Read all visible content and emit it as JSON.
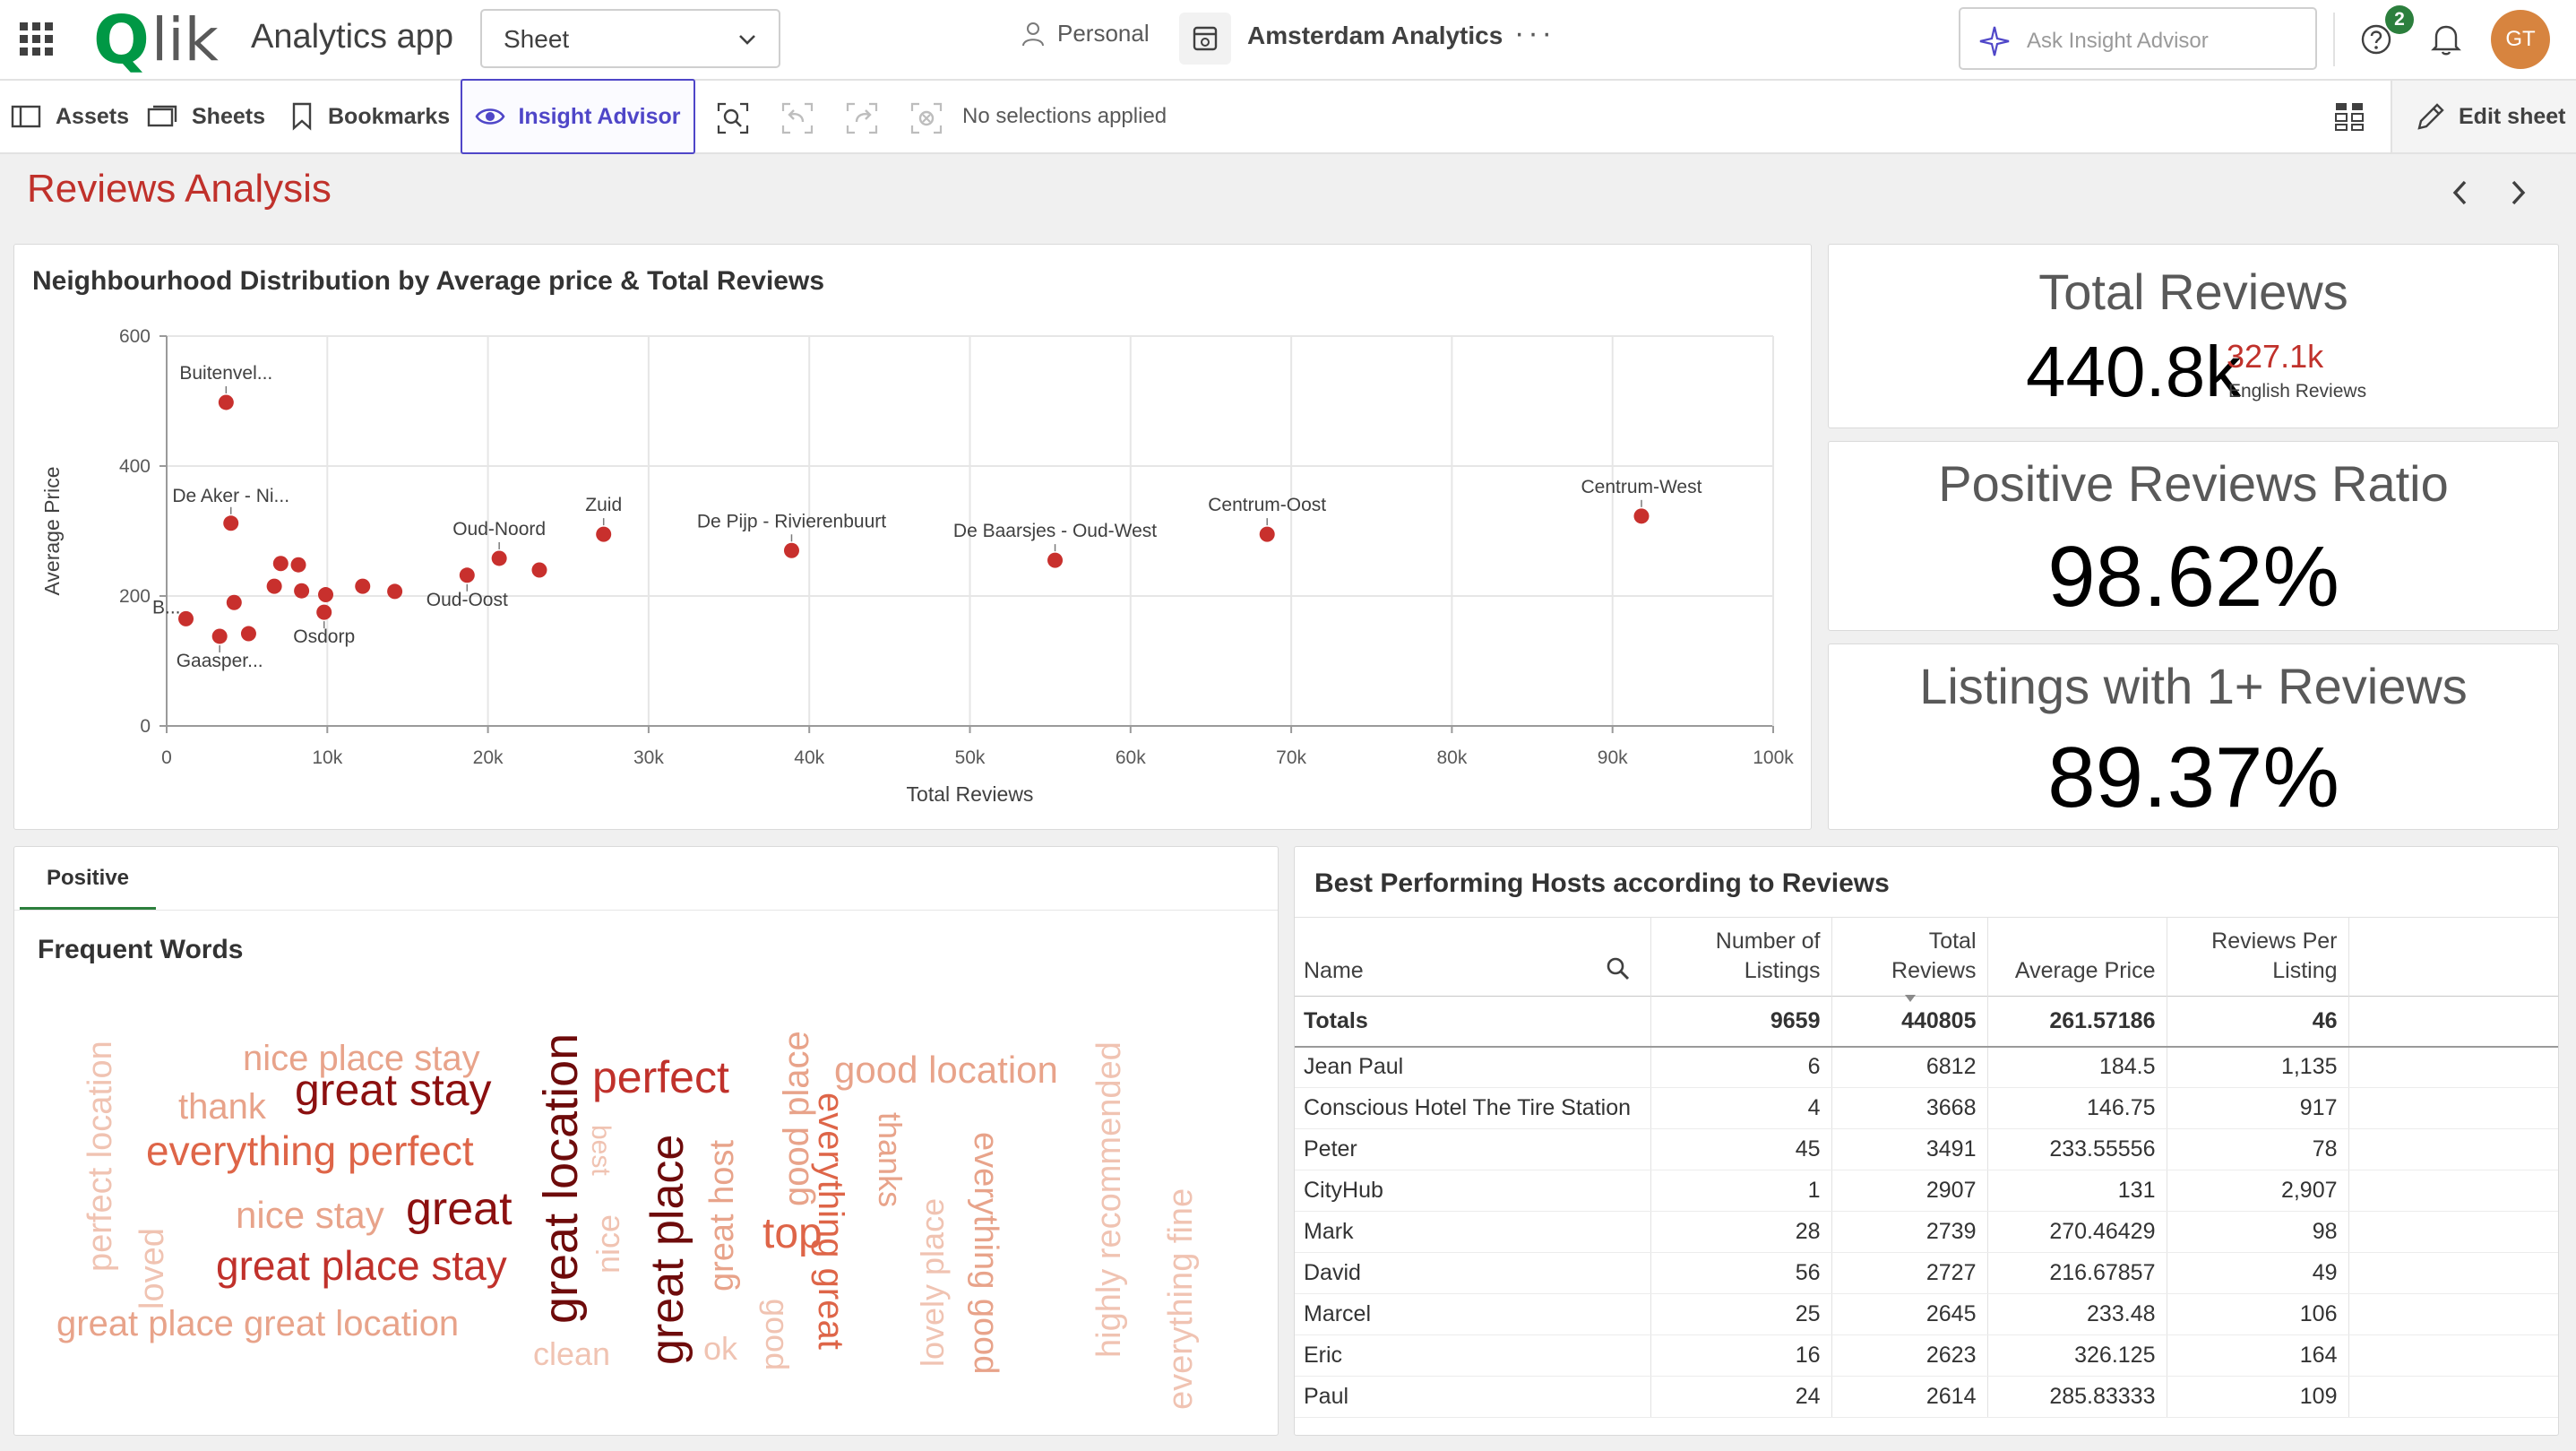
{
  "header": {
    "logo_initial": "Q",
    "logo_rest": "lik",
    "app_title": "Analytics app",
    "sheet_select": "Sheet",
    "personal_label": "Personal",
    "space_name": "Amsterdam Analytics",
    "more_label": "···",
    "ask_placeholder": "Ask Insight Advisor",
    "notification_count": "2",
    "avatar_initials": "GT"
  },
  "toolbar": {
    "assets": "Assets",
    "sheets": "Sheets",
    "bookmarks": "Bookmarks",
    "insight_advisor": "Insight Advisor",
    "no_selections": "No selections applied",
    "edit_sheet": "Edit sheet"
  },
  "sheet": {
    "title": "Reviews Analysis"
  },
  "scatter": {
    "title": "Neighbourhood Distribution by Average price & Total Reviews"
  },
  "chart_data": {
    "type": "scatter",
    "title": "Neighbourhood Distribution by Average price & Total Reviews",
    "xlabel": "Total Reviews",
    "ylabel": "Average Price",
    "xlim": [
      0,
      100000
    ],
    "ylim": [
      0,
      600
    ],
    "x_ticks": [
      "0",
      "10k",
      "20k",
      "30k",
      "40k",
      "50k",
      "60k",
      "70k",
      "80k",
      "90k",
      "100k"
    ],
    "y_ticks": [
      "0",
      "200",
      "400",
      "600"
    ],
    "grid": true,
    "color": "#c8302d",
    "points": [
      {
        "label": "Buitenvel...",
        "x": 3700,
        "y": 498
      },
      {
        "label": "De Aker - Ni...",
        "x": 4000,
        "y": 312
      },
      {
        "label": "B...",
        "x": 1200,
        "y": 165
      },
      {
        "label": "Gaasper...",
        "x": 3300,
        "y": 138
      },
      {
        "label": "",
        "x": 4200,
        "y": 190
      },
      {
        "label": "",
        "x": 5100,
        "y": 142
      },
      {
        "label": "",
        "x": 6700,
        "y": 215
      },
      {
        "label": "",
        "x": 7100,
        "y": 250
      },
      {
        "label": "",
        "x": 8200,
        "y": 248
      },
      {
        "label": "",
        "x": 8400,
        "y": 208
      },
      {
        "label": "Osdorp",
        "x": 9800,
        "y": 175
      },
      {
        "label": "",
        "x": 9900,
        "y": 202
      },
      {
        "label": "",
        "x": 12200,
        "y": 215
      },
      {
        "label": "",
        "x": 14200,
        "y": 207
      },
      {
        "label": "Oud-Oost",
        "x": 18700,
        "y": 232
      },
      {
        "label": "Oud-Noord",
        "x": 20700,
        "y": 258
      },
      {
        "label": "",
        "x": 23200,
        "y": 240
      },
      {
        "label": "Zuid",
        "x": 27200,
        "y": 295
      },
      {
        "label": "De Pijp - Rivierenbuurt",
        "x": 38900,
        "y": 270
      },
      {
        "label": "De Baarsjes - Oud-West",
        "x": 55300,
        "y": 255
      },
      {
        "label": "Centrum-Oost",
        "x": 68500,
        "y": 295
      },
      {
        "label": "Centrum-West",
        "x": 91800,
        "y": 323
      }
    ]
  },
  "kpis": {
    "total_reviews": {
      "title": "Total Reviews",
      "value": "440.8k",
      "secondary_value": "327.1k",
      "secondary_label": "English Reviews"
    },
    "positive_ratio": {
      "title": "Positive Reviews Ratio",
      "value": "98.62%"
    },
    "listings_reviews": {
      "title": "Listings with 1+ Reviews",
      "value": "89.37%"
    }
  },
  "wordcloud": {
    "tab": "Positive",
    "title": "Frequent Words",
    "words": [
      {
        "text": "nice place stay",
        "color": "#e8a38a",
        "size": 40,
        "rot": 0
      },
      {
        "text": "thank",
        "color": "#e8a38a",
        "size": 40,
        "rot": 0
      },
      {
        "text": "great stay",
        "color": "#8c1010",
        "size": 50,
        "rot": 0
      },
      {
        "text": "everything perfect",
        "color": "#de6548",
        "size": 46,
        "rot": 0
      },
      {
        "text": "nice stay",
        "color": "#e8a38a",
        "size": 42,
        "rot": 0
      },
      {
        "text": "great",
        "color": "#8c1010",
        "size": 52,
        "rot": 0
      },
      {
        "text": "great place stay",
        "color": "#c0312b",
        "size": 46,
        "rot": 0
      },
      {
        "text": "great place great location",
        "color": "#e8a38a",
        "size": 40,
        "rot": 0
      },
      {
        "text": "perfect location",
        "color": "#f0c3b2",
        "size": 38,
        "rot": -90
      },
      {
        "text": "loved",
        "color": "#f0c3b2",
        "size": 38,
        "rot": -90
      },
      {
        "text": "great location",
        "color": "#6e0b0b",
        "size": 54,
        "rot": -90
      },
      {
        "text": "best",
        "color": "#f0c3b2",
        "size": 30,
        "rot": 90
      },
      {
        "text": "nice",
        "color": "#f0c3b2",
        "size": 36,
        "rot": -90
      },
      {
        "text": "clean",
        "color": "#f0c3b2",
        "size": 36,
        "rot": 0
      },
      {
        "text": "perfect",
        "color": "#c0312b",
        "size": 50,
        "rot": 0
      },
      {
        "text": "great place",
        "color": "#6e0b0b",
        "size": 52,
        "rot": -90
      },
      {
        "text": "great host",
        "color": "#e8a38a",
        "size": 38,
        "rot": -90
      },
      {
        "text": "ok",
        "color": "#f0c3b2",
        "size": 36,
        "rot": 0
      },
      {
        "text": "good place",
        "color": "#e8a38a",
        "size": 40,
        "rot": -90
      },
      {
        "text": "top",
        "color": "#de6548",
        "size": 48,
        "rot": 0
      },
      {
        "text": "good",
        "color": "#f0c3b2",
        "size": 36,
        "rot": 90
      },
      {
        "text": "good location",
        "color": "#e8a38a",
        "size": 42,
        "rot": 0
      },
      {
        "text": "everything great",
        "color": "#de6548",
        "size": 40,
        "rot": 90
      },
      {
        "text": "thanks",
        "color": "#e8a38a",
        "size": 36,
        "rot": 90
      },
      {
        "text": "lovely place",
        "color": "#f0c3b2",
        "size": 36,
        "rot": -90
      },
      {
        "text": "everything good",
        "color": "#e8a38a",
        "size": 38,
        "rot": 90
      },
      {
        "text": "highly recommended",
        "color": "#f0c3b2",
        "size": 38,
        "rot": -90
      },
      {
        "text": "everything fine",
        "color": "#f0c3b2",
        "size": 38,
        "rot": -90
      }
    ]
  },
  "table": {
    "title": "Best Performing Hosts according to Reviews",
    "headers": [
      "Name",
      "Number of Listings",
      "Total Reviews",
      "Average Price",
      "Reviews Per Listing"
    ],
    "totals": {
      "label": "Totals",
      "listings": "9659",
      "reviews": "440805",
      "price": "261.57186",
      "per_listing": "46"
    },
    "rows": [
      {
        "name": "Jean Paul",
        "listings": "6",
        "reviews": "6812",
        "price": "184.5",
        "per_listing": "1,135"
      },
      {
        "name": "Conscious Hotel The Tire Station",
        "listings": "4",
        "reviews": "3668",
        "price": "146.75",
        "per_listing": "917"
      },
      {
        "name": "Peter",
        "listings": "45",
        "reviews": "3491",
        "price": "233.55556",
        "per_listing": "78"
      },
      {
        "name": "CityHub",
        "listings": "1",
        "reviews": "2907",
        "price": "131",
        "per_listing": "2,907"
      },
      {
        "name": "Mark",
        "listings": "28",
        "reviews": "2739",
        "price": "270.46429",
        "per_listing": "98"
      },
      {
        "name": "David",
        "listings": "56",
        "reviews": "2727",
        "price": "216.67857",
        "per_listing": "49"
      },
      {
        "name": "Marcel",
        "listings": "25",
        "reviews": "2645",
        "price": "233.48",
        "per_listing": "106"
      },
      {
        "name": "Eric",
        "listings": "16",
        "reviews": "2623",
        "price": "326.125",
        "per_listing": "164"
      },
      {
        "name": "Paul",
        "listings": "24",
        "reviews": "2614",
        "price": "285.83333",
        "per_listing": "109"
      }
    ]
  }
}
